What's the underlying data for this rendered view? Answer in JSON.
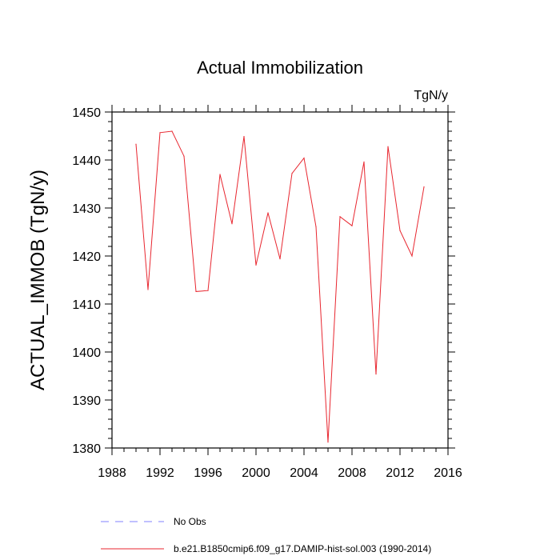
{
  "chart_data": {
    "type": "line",
    "title": "Actual Immobilization",
    "units_label": "TgN/y",
    "ylabel": "ACTUAL_IMMOB  (TgN/y)",
    "xlabel": "",
    "xlim": [
      1988,
      2016
    ],
    "ylim": [
      1380,
      1450
    ],
    "x_ticks": [
      1988,
      1992,
      1996,
      2000,
      2004,
      2008,
      2012,
      2016
    ],
    "y_ticks": [
      1380,
      1390,
      1400,
      1410,
      1420,
      1430,
      1440,
      1450
    ],
    "grid": false,
    "legend_position": "bottom",
    "series": [
      {
        "name": "No Obs",
        "color": "#8080ff",
        "style": "dashed",
        "x": [],
        "values": []
      },
      {
        "name": "b.e21.B1850cmip6.f09_g17.DAMIP-hist-sol.003 (1990-2014)",
        "color": "#e8262f",
        "style": "solid",
        "x": [
          1990,
          1991,
          1992,
          1993,
          1994,
          1995,
          1996,
          1997,
          1998,
          1999,
          2000,
          2001,
          2002,
          2003,
          2004,
          2005,
          2006,
          2007,
          2008,
          2009,
          2010,
          2011,
          2012,
          2013,
          2014
        ],
        "values": [
          1443.3,
          1413.0,
          1445.7,
          1446.0,
          1440.8,
          1412.6,
          1412.8,
          1437.0,
          1426.7,
          1444.9,
          1418.1,
          1429.0,
          1419.4,
          1437.2,
          1440.4,
          1426.1,
          1381.2,
          1428.2,
          1426.3,
          1439.6,
          1395.4,
          1442.8,
          1425.3,
          1420.0,
          1434.4
        ]
      }
    ]
  }
}
